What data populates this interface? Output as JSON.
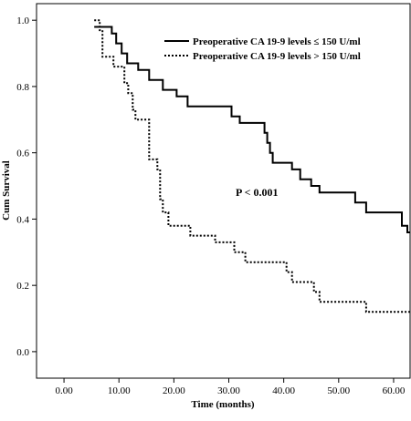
{
  "chart_data": {
    "type": "line",
    "xlabel": "Time (months)",
    "ylabel": "Cum Survival",
    "xlim": [
      -5,
      63
    ],
    "ylim": [
      -0.08,
      1.05
    ],
    "xticks": [
      0,
      10,
      20,
      30,
      40,
      50,
      60
    ],
    "xtick_labels": [
      "0.00",
      "10.00",
      "20.00",
      "30.00",
      "40.00",
      "50.00",
      "60.00"
    ],
    "yticks": [
      0,
      0.2,
      0.4,
      0.6,
      0.8,
      1.0
    ],
    "ytick_labels": [
      "0.0",
      "0.2",
      "0.4",
      "0.6",
      "0.8",
      "1.0"
    ],
    "legend_position": "top-right",
    "annotation": "P < 0.001",
    "series": [
      {
        "name": "Preoperative CA 19-9 levels ≤ 150 U/ml",
        "style": "solid",
        "steps": [
          [
            5.5,
            0.98
          ],
          [
            8.7,
            0.98
          ],
          [
            8.7,
            0.96
          ],
          [
            9.5,
            0.96
          ],
          [
            9.5,
            0.93
          ],
          [
            10.5,
            0.93
          ],
          [
            10.5,
            0.9
          ],
          [
            11.5,
            0.9
          ],
          [
            11.5,
            0.87
          ],
          [
            13.5,
            0.87
          ],
          [
            13.5,
            0.85
          ],
          [
            15.5,
            0.85
          ],
          [
            15.5,
            0.82
          ],
          [
            18,
            0.82
          ],
          [
            18,
            0.79
          ],
          [
            20.5,
            0.79
          ],
          [
            20.5,
            0.77
          ],
          [
            22.5,
            0.77
          ],
          [
            22.5,
            0.74
          ],
          [
            30.5,
            0.74
          ],
          [
            30.5,
            0.71
          ],
          [
            32,
            0.71
          ],
          [
            32,
            0.69
          ],
          [
            36.5,
            0.69
          ],
          [
            36.5,
            0.66
          ],
          [
            37,
            0.66
          ],
          [
            37,
            0.63
          ],
          [
            37.5,
            0.63
          ],
          [
            37.5,
            0.6
          ],
          [
            38,
            0.6
          ],
          [
            38,
            0.57
          ],
          [
            41.5,
            0.57
          ],
          [
            41.5,
            0.55
          ],
          [
            43,
            0.55
          ],
          [
            43,
            0.52
          ],
          [
            45,
            0.52
          ],
          [
            45,
            0.5
          ],
          [
            46.5,
            0.5
          ],
          [
            46.5,
            0.48
          ],
          [
            53,
            0.48
          ],
          [
            53,
            0.45
          ],
          [
            55,
            0.45
          ],
          [
            55,
            0.42
          ],
          [
            61.5,
            0.42
          ],
          [
            61.5,
            0.38
          ],
          [
            62.5,
            0.38
          ],
          [
            62.5,
            0.36
          ],
          [
            63,
            0.36
          ]
        ]
      },
      {
        "name": "Preoperative CA 19-9 levels > 150 U/ml",
        "style": "dotted",
        "steps": [
          [
            5.5,
            1.0
          ],
          [
            6.5,
            1.0
          ],
          [
            6.5,
            0.97
          ],
          [
            7,
            0.97
          ],
          [
            7,
            0.89
          ],
          [
            9,
            0.89
          ],
          [
            9,
            0.86
          ],
          [
            11,
            0.86
          ],
          [
            11,
            0.81
          ],
          [
            11.7,
            0.81
          ],
          [
            11.7,
            0.78
          ],
          [
            12.5,
            0.78
          ],
          [
            12.5,
            0.73
          ],
          [
            13,
            0.73
          ],
          [
            13,
            0.7
          ],
          [
            15.5,
            0.7
          ],
          [
            15.5,
            0.58
          ],
          [
            17,
            0.58
          ],
          [
            17,
            0.55
          ],
          [
            17.5,
            0.55
          ],
          [
            17.5,
            0.46
          ],
          [
            18,
            0.46
          ],
          [
            18,
            0.42
          ],
          [
            19,
            0.42
          ],
          [
            19,
            0.38
          ],
          [
            23,
            0.38
          ],
          [
            23,
            0.35
          ],
          [
            27.5,
            0.35
          ],
          [
            27.5,
            0.33
          ],
          [
            31,
            0.33
          ],
          [
            31,
            0.3
          ],
          [
            33,
            0.3
          ],
          [
            33,
            0.27
          ],
          [
            40.5,
            0.27
          ],
          [
            40.5,
            0.24
          ],
          [
            41.5,
            0.24
          ],
          [
            41.5,
            0.21
          ],
          [
            45.5,
            0.21
          ],
          [
            45.5,
            0.18
          ],
          [
            46.5,
            0.18
          ],
          [
            46.5,
            0.15
          ],
          [
            55,
            0.15
          ],
          [
            55,
            0.12
          ],
          [
            63,
            0.12
          ]
        ]
      }
    ]
  }
}
